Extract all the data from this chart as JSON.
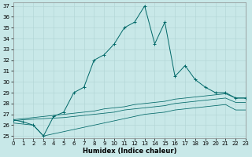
{
  "xlabel": "Humidex (Indice chaleur)",
  "bg_color": "#c8e8e8",
  "line_color": "#006868",
  "grid_color": "#b0d4d4",
  "x": [
    0,
    1,
    2,
    3,
    4,
    5,
    6,
    7,
    8,
    9,
    10,
    11,
    12,
    13,
    14,
    15,
    16,
    17,
    18,
    19,
    20,
    21,
    22,
    23
  ],
  "y_main": [
    26.5,
    26.3,
    26.0,
    25.0,
    26.8,
    27.2,
    29.0,
    29.5,
    32.0,
    32.5,
    33.5,
    35.0,
    35.5,
    37.0,
    33.5,
    35.5,
    30.5,
    31.5,
    30.2,
    29.5,
    29.0,
    29.0,
    28.5,
    28.5
  ],
  "y_upper": [
    26.5,
    26.6,
    26.7,
    26.8,
    26.9,
    27.0,
    27.1,
    27.2,
    27.3,
    27.5,
    27.6,
    27.7,
    27.9,
    28.0,
    28.1,
    28.2,
    28.4,
    28.5,
    28.6,
    28.7,
    28.8,
    28.9,
    28.5,
    28.5
  ],
  "y_mid": [
    26.4,
    26.5,
    26.55,
    26.6,
    26.65,
    26.7,
    26.8,
    26.9,
    27.0,
    27.1,
    27.2,
    27.4,
    27.5,
    27.6,
    27.7,
    27.8,
    28.0,
    28.1,
    28.2,
    28.3,
    28.4,
    28.5,
    28.1,
    28.1
  ],
  "y_lower": [
    26.2,
    26.1,
    26.0,
    25.0,
    25.2,
    25.4,
    25.6,
    25.8,
    26.0,
    26.2,
    26.4,
    26.6,
    26.8,
    27.0,
    27.1,
    27.2,
    27.4,
    27.5,
    27.6,
    27.7,
    27.8,
    27.9,
    27.4,
    27.4
  ],
  "xlim": [
    0,
    23
  ],
  "ylim": [
    24.8,
    37.3
  ],
  "yticks": [
    25,
    26,
    27,
    28,
    29,
    30,
    31,
    32,
    33,
    34,
    35,
    36,
    37
  ],
  "xticks": [
    0,
    1,
    2,
    3,
    4,
    5,
    6,
    7,
    8,
    9,
    10,
    11,
    12,
    13,
    14,
    15,
    16,
    17,
    18,
    19,
    20,
    21,
    22,
    23
  ],
  "xlabel_fontsize": 6.0,
  "tick_fontsize": 5.0
}
